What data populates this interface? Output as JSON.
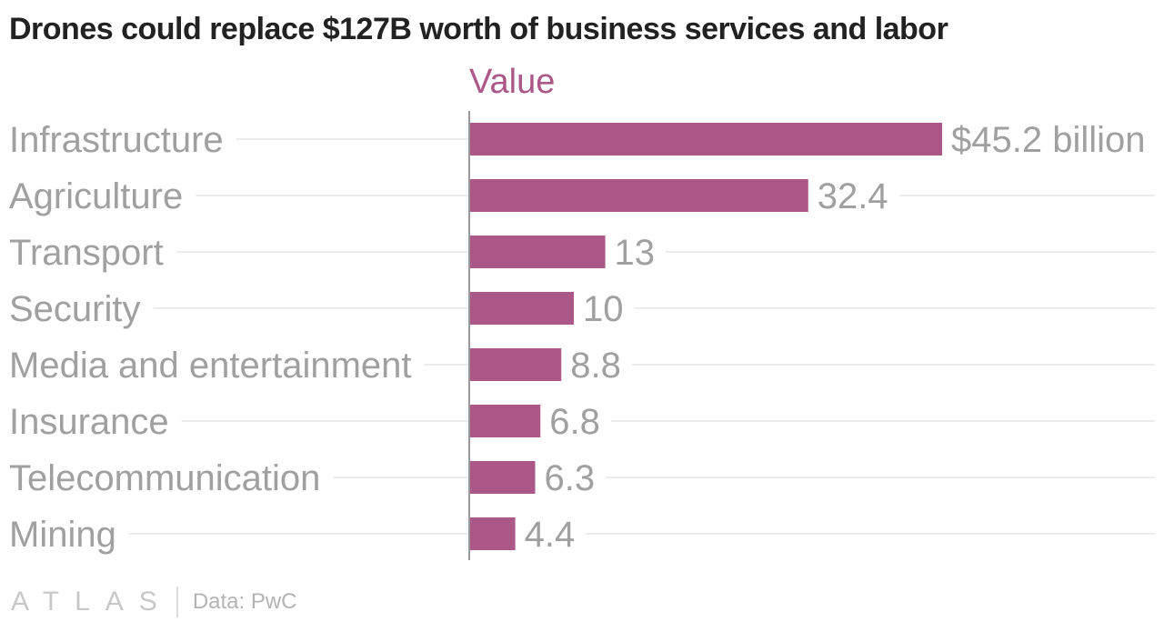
{
  "chart_data": {
    "type": "bar",
    "orientation": "horizontal",
    "title": "Drones could replace $127B worth of business services and labor",
    "legend": {
      "label": "Value",
      "placement": "top"
    },
    "categories": [
      "Infrastructure",
      "Agriculture",
      "Transport",
      "Security",
      "Media and entertainment",
      "Insurance",
      "Telecommunication",
      "Mining"
    ],
    "series": [
      {
        "name": "Value",
        "values": [
          45.2,
          32.4,
          13,
          10,
          8.8,
          6.8,
          6.3,
          4.4
        ],
        "labels": [
          "$45.2 billion",
          "32.4",
          "13",
          "10",
          "8.8",
          "6.8",
          "6.3",
          "4.4"
        ],
        "color": "#ab5787"
      }
    ],
    "xlim": [
      0,
      45.2
    ],
    "grid": true
  },
  "footer": {
    "brand": "ATLAS",
    "source": "Data: PwC"
  },
  "colors": {
    "bar": "#ab5787",
    "legend_text": "#ab5787",
    "label_text": "#a0a0a0",
    "title_text": "#222222"
  }
}
